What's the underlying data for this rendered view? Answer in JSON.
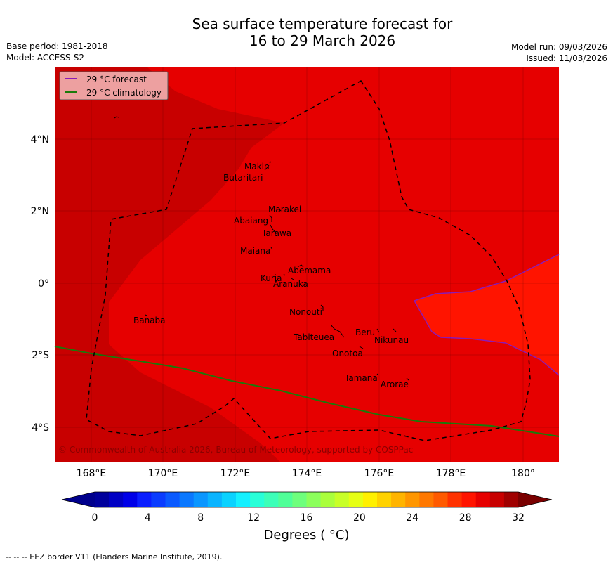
{
  "title": {
    "line1": "Sea surface temperature forecast for",
    "line2": "16 to 29 March 2026"
  },
  "meta_left": {
    "base_period": "Base period: 1981-2018",
    "model": "Model: ACCESS-S2"
  },
  "meta_right": {
    "model_run": "Model run: 09/03/2026",
    "issued": "Issued: 11/03/2026"
  },
  "legend": {
    "forecast": "29 °C  forecast",
    "climatology": "29 °C  climatology",
    "forecast_color": "#8b1ab8",
    "climatology_color": "#1a7a0a"
  },
  "axes": {
    "lat_labels": [
      "4°N",
      "2°N",
      "0°",
      "2°S",
      "4°S"
    ],
    "lon_labels": [
      "168°E",
      "170°E",
      "172°E",
      "174°E",
      "176°E",
      "178°E",
      "180°"
    ]
  },
  "places": [
    {
      "name": "Makin"
    },
    {
      "name": "Butaritari"
    },
    {
      "name": "Marakei"
    },
    {
      "name": "Abaiang"
    },
    {
      "name": "Tarawa"
    },
    {
      "name": "Maiana"
    },
    {
      "name": "Abemama"
    },
    {
      "name": "Kuria"
    },
    {
      "name": "Aranuka"
    },
    {
      "name": "Nonouti"
    },
    {
      "name": "Banaba"
    },
    {
      "name": "Beru"
    },
    {
      "name": "Tabiteuea"
    },
    {
      "name": "Nikunau"
    },
    {
      "name": "Onotoa"
    },
    {
      "name": "Tamana"
    },
    {
      "name": "Arorae"
    }
  ],
  "copyright": "© Commonwealth of Australia 2026, Bureau of Meteorology, supported by COSPPac",
  "colorbar": {
    "ticks": [
      "0",
      "4",
      "8",
      "12",
      "16",
      "20",
      "24",
      "28",
      "32"
    ],
    "label": "Degrees ( °C)",
    "colors": [
      "#00009c",
      "#0000c4",
      "#0000e8",
      "#0a1eff",
      "#0a3cff",
      "#0a5aff",
      "#0a78ff",
      "#0a96ff",
      "#0ab4ff",
      "#0ad2ff",
      "#14f0ff",
      "#28ffd8",
      "#3cffb8",
      "#50ff98",
      "#6eff7c",
      "#8cff5c",
      "#aaff3c",
      "#c8ff28",
      "#e6ff14",
      "#fff000",
      "#ffd200",
      "#ffb400",
      "#ff9600",
      "#ff7800",
      "#ff5a00",
      "#ff3200",
      "#ff1400",
      "#e60000",
      "#c80000",
      "#a00000"
    ],
    "low_color": "#00008c",
    "high_color": "#7a0000"
  },
  "footer": "--  --  -- EEZ border V11 (Flanders Marine Institute, 2019)."
}
